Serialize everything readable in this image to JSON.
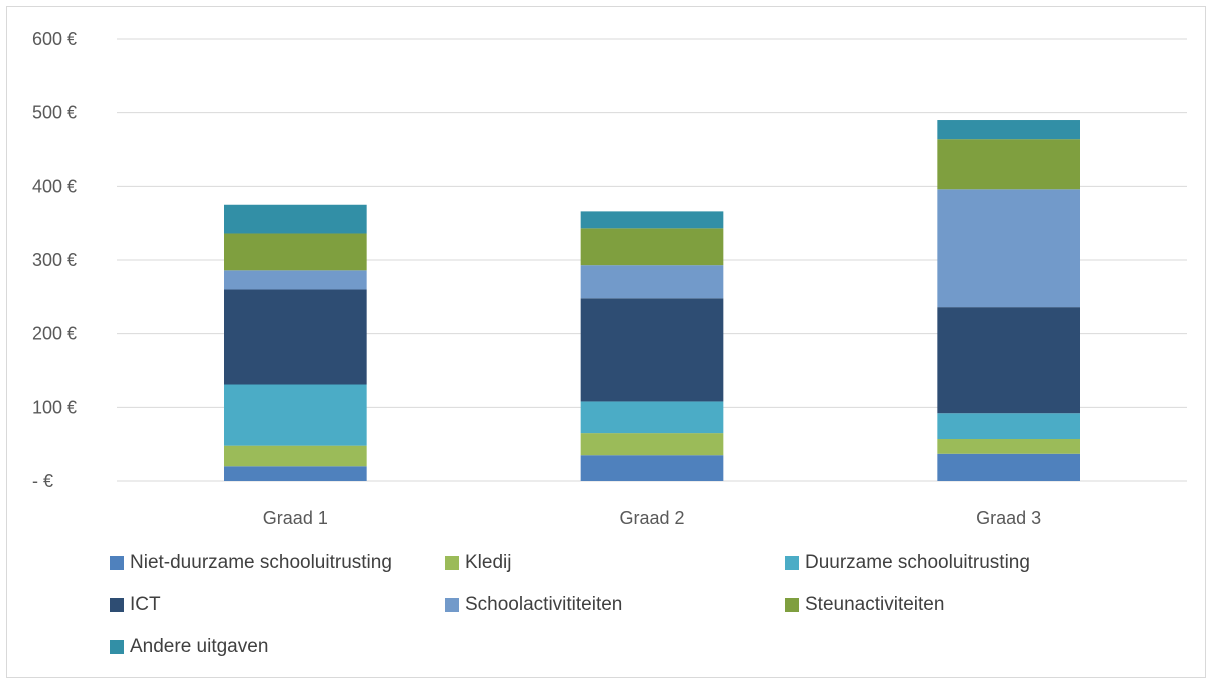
{
  "chart_data": {
    "type": "bar",
    "stacked": true,
    "categories": [
      "Graad 1",
      "Graad 2",
      "Graad 3"
    ],
    "series": [
      {
        "name": "Niet-duurzame schooluitrusting",
        "color": "#4f81bd",
        "values": [
          20,
          35,
          37
        ]
      },
      {
        "name": "Kledij",
        "color": "#9bbb59",
        "values": [
          28,
          30,
          20
        ]
      },
      {
        "name": "Duurzame schooluitrusting",
        "color": "#4bacc6",
        "values": [
          83,
          43,
          35
        ]
      },
      {
        "name": "ICT",
        "color": "#2e4d73",
        "values": [
          129,
          140,
          144
        ]
      },
      {
        "name": "Schoolactivititeiten",
        "color": "#729aca",
        "values": [
          26,
          45,
          160
        ]
      },
      {
        "name": "Steunactiviteiten",
        "color": "#7f9f3f",
        "values": [
          50,
          50,
          68
        ]
      },
      {
        "name": "Andere uitgaven",
        "color": "#328fa6",
        "values": [
          39,
          23,
          26
        ]
      }
    ],
    "ylim": [
      0,
      600
    ],
    "yticks": [
      "-  €",
      "100 €",
      "200 €",
      "300 €",
      "400 €",
      "500 €",
      "600 €"
    ],
    "ytick_values": [
      0,
      100,
      200,
      300,
      400,
      500,
      600
    ],
    "grid": true,
    "legend_position": "bottom",
    "title": "",
    "xlabel": "",
    "ylabel": ""
  }
}
